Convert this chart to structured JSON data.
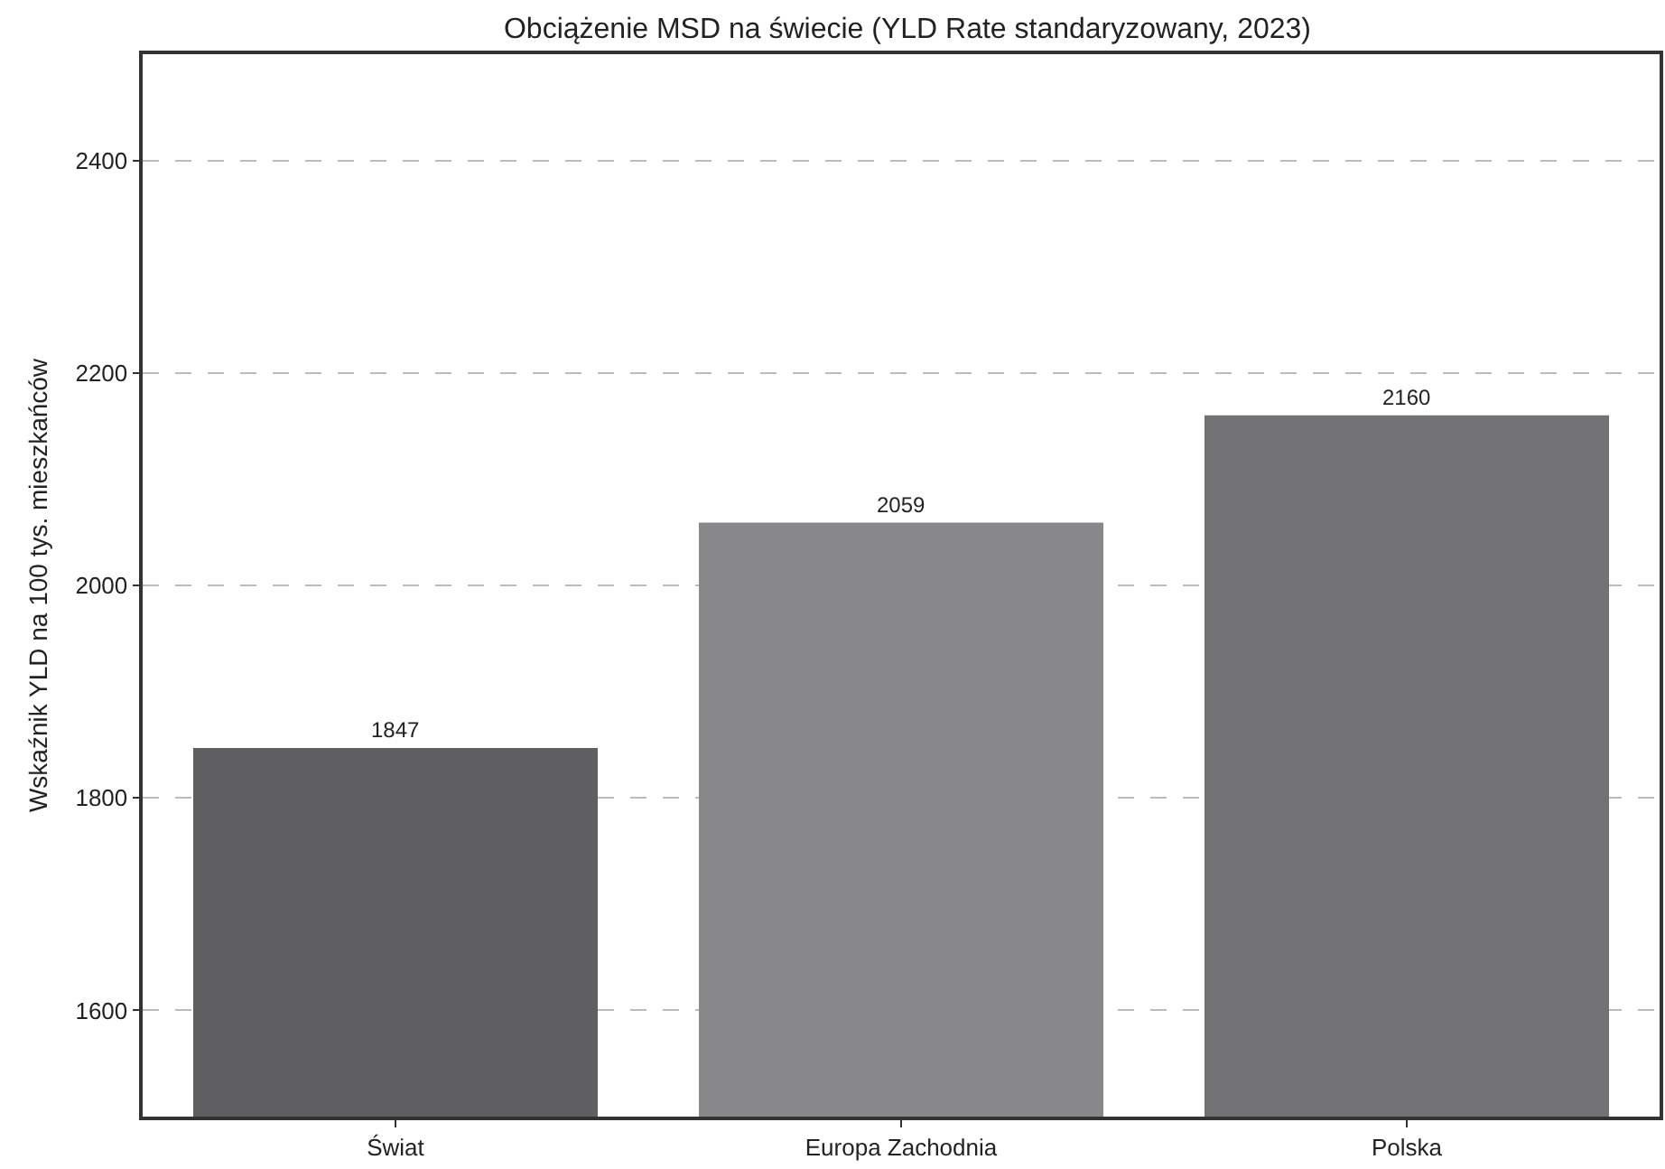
{
  "chart_data": {
    "type": "bar",
    "title": "Obciążenie MSD na świecie (YLD Rate standaryzowany, 2023)",
    "ylabel": "Wskaźnik YLD na 100 tys. mieszkańców",
    "categories": [
      "Świat",
      "Europa Zachodnia",
      "Polska"
    ],
    "values": [
      1847,
      2059,
      2160
    ],
    "colors": [
      "#5f5f61",
      "#88888b",
      "#727275"
    ],
    "ylim": [
      1500,
      2500
    ],
    "yticks": [
      1600,
      1800,
      2000,
      2200,
      2400
    ],
    "grid": "y",
    "data_labels": true
  }
}
